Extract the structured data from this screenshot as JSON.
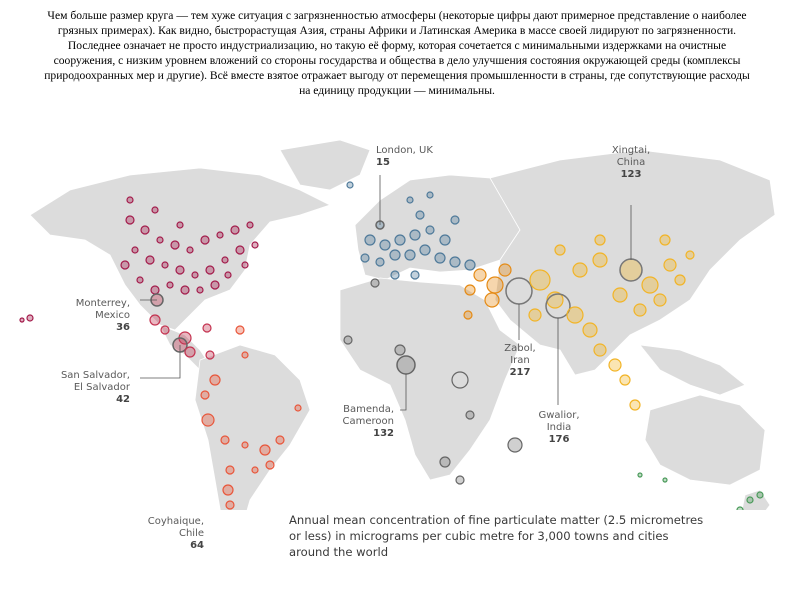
{
  "intro_text": "Чем больше размер круга — тем хуже ситуация с загрязненностью атмосферы (некоторые цифры дают примерное представление о наиболее грязных примерах). Как видно, быстрорастущая Азия, страны Африки и Латинская Америка в массе своей лидируют по загрязненности. Последнее означает не просто индустриализацию, но такую её форму, которая сочетается с минимальными издержками на очистные сооружения, с низким уровнем вложений со стороны государства и общества в дело улучшения состояния окружающей среды (комплексы природоохранных мер и другие). Всё вместе взятое отражает выгоду от перемещения промышленности в страны, где сопутствующие расходы на единицу продукции — минимальны.",
  "caption": "Annual mean concentration of fine particulate matter (2.5 micrometres or less) in micrograms per cubic metre for 3,000 towns and cities around the world",
  "colors": {
    "north_america": "#a31b4b",
    "central_america": "#c43350",
    "south_america": "#e8563a",
    "europe": "#4f7a9a",
    "middle_east": "#e58a14",
    "asia": "#f2b426",
    "africa": "#777777",
    "oceania": "#4a9a5a",
    "land": "#dcdcdc"
  },
  "callouts": {
    "london": {
      "name": "London, UK",
      "value": "15"
    },
    "xingtai": {
      "name": "Xingtai,",
      "name2": "China",
      "value": "123"
    },
    "monterrey": {
      "name": "Monterrey,",
      "name2": "Mexico",
      "value": "36"
    },
    "san_salvador": {
      "name": "San Salvador,",
      "name2": "El Salvador",
      "value": "42"
    },
    "zabol": {
      "name": "Zabol,",
      "name2": "Iran",
      "value": "217"
    },
    "gwalior": {
      "name": "Gwalior,",
      "name2": "India",
      "value": "176"
    },
    "bamenda": {
      "name": "Bamenda,",
      "name2": "Cameroon",
      "value": "132"
    },
    "coyhaique": {
      "name": "Coyhaique,",
      "name2": "Chile",
      "value": "64"
    }
  }
}
